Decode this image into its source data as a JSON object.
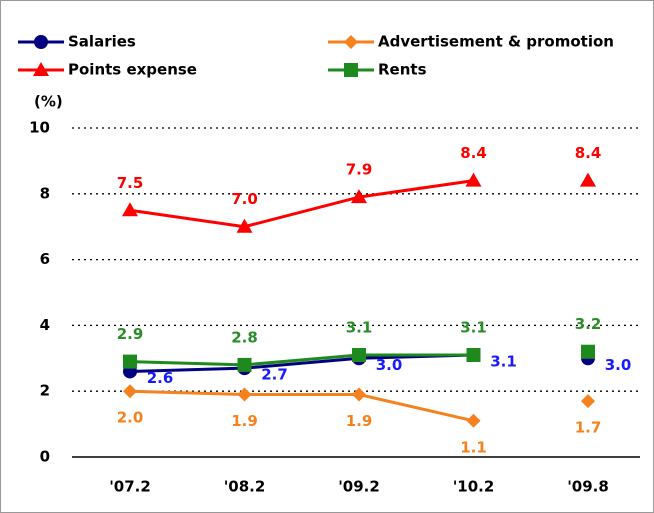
{
  "chart_data": {
    "type": "line",
    "y_axis_label": "(%)",
    "categories": [
      "'07.2",
      "'08.2",
      "'09.2",
      "'10.2",
      "'09.8"
    ],
    "last_point_separate": true,
    "ylim": [
      0,
      10
    ],
    "yticks": [
      0,
      2,
      4,
      6,
      8,
      10
    ],
    "grid": true,
    "series": [
      {
        "name": "Salaries",
        "color": "#000080",
        "label_color": "#1a1aff",
        "marker": "circle",
        "label_position": "right",
        "values": [
          2.6,
          2.7,
          3.0,
          3.1,
          3.0
        ],
        "value_labels": [
          "2.6",
          "2.7",
          "3.0",
          "3.1",
          "3.0"
        ]
      },
      {
        "name": "Advertisement & promotion",
        "color": "#f5821f",
        "label_color": "#f5821f",
        "marker": "diamond",
        "label_position": "below",
        "values": [
          2.0,
          1.9,
          1.9,
          1.1,
          1.7
        ],
        "value_labels": [
          "2.0",
          "1.9",
          "1.9",
          "1.1",
          "1.7"
        ]
      },
      {
        "name": "Points expense",
        "color": "#ff0000",
        "label_color": "#ff0000",
        "marker": "triangle",
        "label_position": "above",
        "values": [
          7.5,
          7.0,
          7.9,
          8.4,
          8.4
        ],
        "value_labels": [
          "7.5",
          "7.0",
          "7.9",
          "8.4",
          "8.4"
        ]
      },
      {
        "name": "Rents",
        "color": "#1e8a1e",
        "label_color": "#2a8c2a",
        "marker": "square",
        "label_position": "above",
        "values": [
          2.9,
          2.8,
          3.1,
          3.1,
          3.2
        ],
        "value_labels": [
          "2.9",
          "2.8",
          "3.1",
          "3.1",
          "3.2"
        ]
      }
    ]
  }
}
